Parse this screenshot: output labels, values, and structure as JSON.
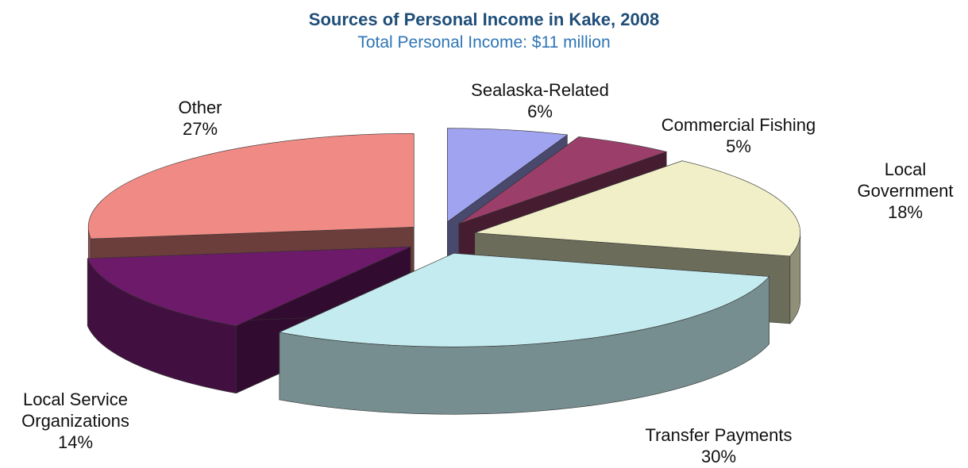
{
  "chart_data": {
    "type": "pie3d",
    "title": "Sources of Personal Income in Kake, 2008",
    "subtitle": "Total Personal Income: $11 million",
    "categories": [
      "Sealaska-Related",
      "Commercial Fishing",
      "Local Government",
      "Transfer Payments",
      "Local Service Organizations",
      "Other"
    ],
    "values": [
      6,
      5,
      18,
      30,
      14,
      27
    ],
    "value_labels": [
      "6%",
      "5%",
      "18%",
      "30%",
      "14%",
      "27%"
    ],
    "colors": [
      "#a0a3f0",
      "#9b3f6a",
      "#f0efc8",
      "#c4ecf0",
      "#6e1a6a",
      "#f08a84"
    ]
  }
}
